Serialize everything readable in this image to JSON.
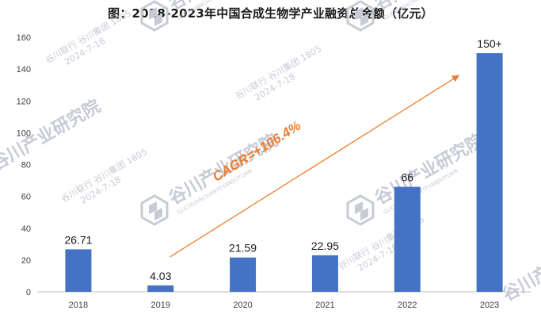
{
  "chart_data": {
    "type": "bar",
    "title": "图：2018-2023年中国合成生物学产业融资总金额（亿元）",
    "categories": [
      "2018",
      "2019",
      "2020",
      "2021",
      "2022",
      "2023"
    ],
    "values": [
      26.71,
      4.03,
      21.59,
      22.95,
      66,
      150
    ],
    "value_labels": [
      "26.71",
      "4.03",
      "21.59",
      "22.95",
      "66",
      "150+"
    ],
    "ylim": [
      0,
      160
    ],
    "yticks": [
      0,
      20,
      40,
      60,
      80,
      100,
      120,
      140,
      160
    ],
    "grid": false,
    "legend": "none",
    "bar_color": "#4472C4",
    "annotation": {
      "text": "CAGR=+106.4%",
      "color": "#ED7D31",
      "arrow_from": {
        "category": "2019",
        "value": 22
      },
      "arrow_to": {
        "category": "2022",
        "value": 136
      }
    }
  },
  "watermark": {
    "brand": "谷川产业研究院",
    "pinyin": "GUCHUANCHANYEYANJIUYUAN",
    "stamp": "谷川联行 谷川集团 1805",
    "date": "2024-7-18",
    "color": "#c7cbd6"
  }
}
